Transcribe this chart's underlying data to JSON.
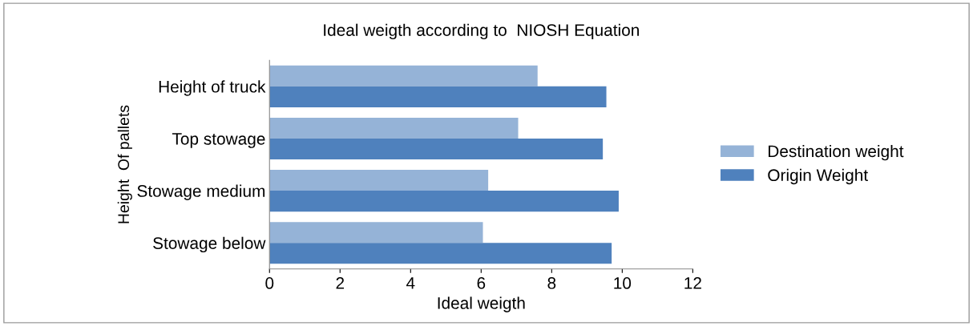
{
  "chart_data": {
    "type": "bar",
    "orientation": "horizontal",
    "title": "Ideal weigth according to  NIOSH Equation",
    "xlabel": "Ideal weigth",
    "ylabel": "Height  Of pallets",
    "categories": [
      "Height of truck",
      "Top stowage",
      "Stowage medium",
      "Stowage below"
    ],
    "series": [
      {
        "name": "Destination weight",
        "color": "#95b3d7",
        "values": [
          7.6,
          7.05,
          6.2,
          6.05
        ]
      },
      {
        "name": "Origin Weight",
        "color": "#4f81bd",
        "values": [
          9.55,
          9.45,
          9.9,
          9.7
        ]
      }
    ],
    "xlim": [
      0,
      12
    ],
    "xticks": [
      0,
      2,
      4,
      6,
      8,
      10,
      12
    ],
    "grid": false,
    "legend": "right"
  }
}
